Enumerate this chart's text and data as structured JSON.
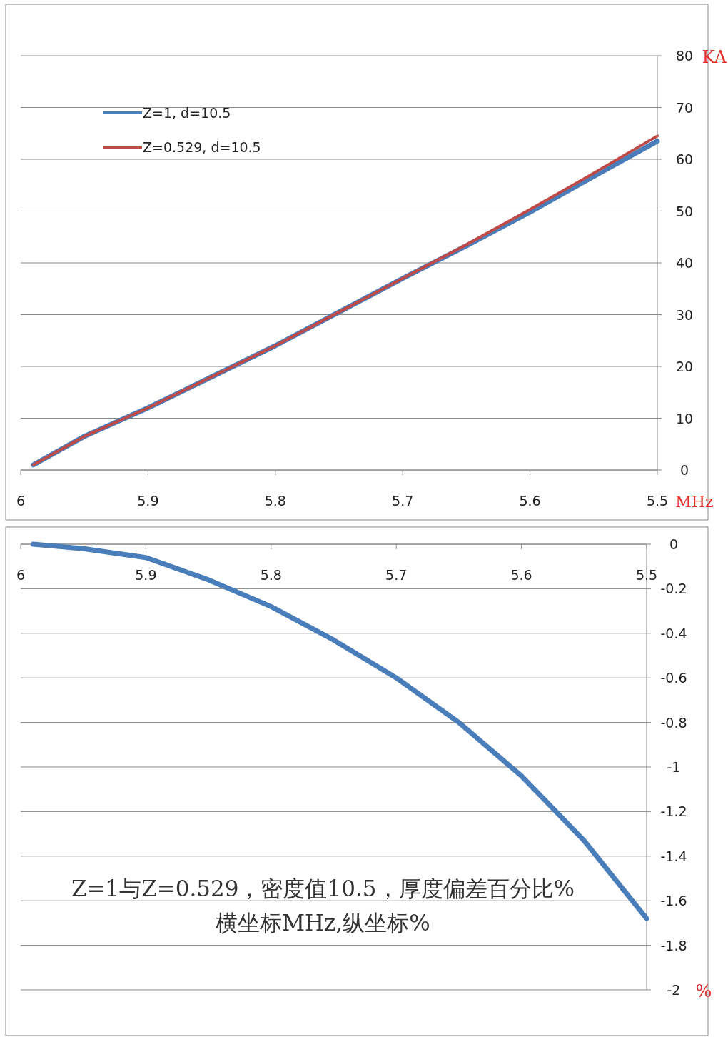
{
  "chart_data": [
    {
      "type": "line",
      "ylabel": "KA",
      "xlabel": "MHz",
      "x": [
        5.99,
        5.95,
        5.9,
        5.85,
        5.8,
        5.75,
        5.7,
        5.65,
        5.6,
        5.55,
        5.5
      ],
      "series": [
        {
          "name": "Z=1, d=10.5",
          "color": "#4a7ebb",
          "values": [
            1.0,
            6.5,
            12,
            18,
            24,
            30.5,
            37,
            43.3,
            49.8,
            56.7,
            63.5
          ]
        },
        {
          "name": "Z=0.529, d=10.5",
          "color": "#be4b48",
          "values": [
            1.0,
            6.5,
            12,
            18,
            24,
            30.5,
            37,
            43.5,
            50.3,
            57.3,
            64.5
          ]
        }
      ],
      "xlim": [
        6,
        5.5
      ],
      "xticks": [
        6,
        5.9,
        5.8,
        5.7,
        5.6,
        5.5
      ],
      "ylim": [
        0,
        80
      ],
      "yticks": [
        0,
        10,
        20,
        30,
        40,
        50,
        60,
        70,
        80
      ],
      "grid": "y",
      "legend": "top left",
      "marker": "none",
      "line_style": "solid"
    },
    {
      "type": "line",
      "ylabel": "%",
      "x": [
        5.99,
        5.95,
        5.9,
        5.85,
        5.8,
        5.75,
        5.7,
        5.65,
        5.6,
        5.55,
        5.5
      ],
      "series": [
        {
          "color": "#4a7ebb",
          "values": [
            0,
            -0.02,
            -0.06,
            -0.16,
            -0.28,
            -0.43,
            -0.6,
            -0.8,
            -1.04,
            -1.33,
            -1.68
          ]
        }
      ],
      "xlim": [
        6,
        5.5
      ],
      "xticks": [
        6,
        5.9,
        5.8,
        5.7,
        5.6,
        5.5
      ],
      "ylim": [
        -2,
        0
      ],
      "yticks": [
        -2,
        -1.8,
        -1.6,
        -1.4,
        -1.2,
        -1,
        -0.8,
        -0.6,
        -0.4,
        -0.2,
        0
      ],
      "grid": "y",
      "marker": "none",
      "line_style": "solid",
      "annotations": [
        "Z=1与Z=0.529，密度值10.5，厚度偏差百分比%",
        "横坐标MHz,纵坐标%"
      ]
    }
  ]
}
